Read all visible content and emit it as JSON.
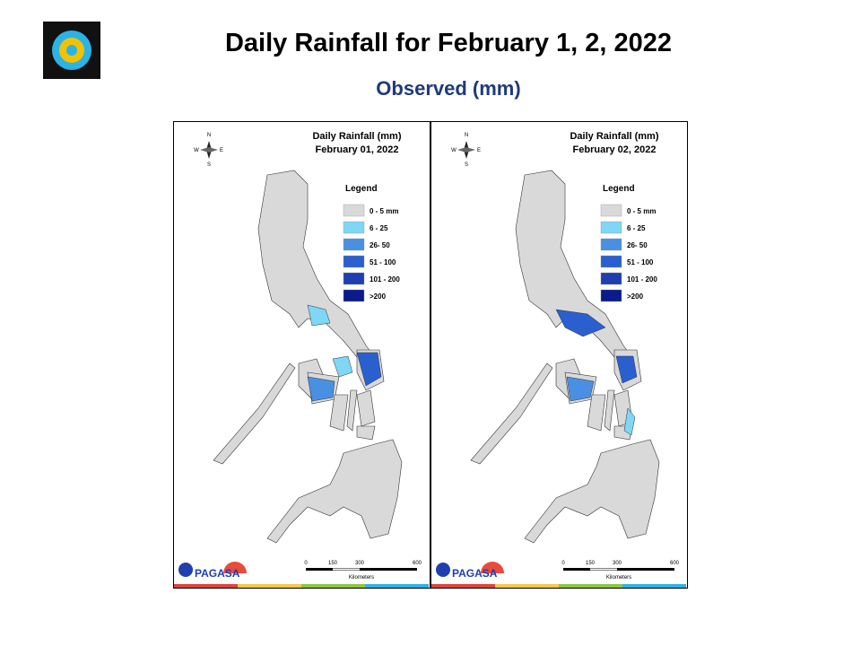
{
  "header": {
    "title": "Daily Rainfall for February 1, 2, 2022",
    "subtitle": "Observed (mm)"
  },
  "legend": {
    "title": "Legend",
    "items": [
      {
        "label": "0 - 5 mm",
        "color": "#d9d9d9"
      },
      {
        "label": "6 - 25",
        "color": "#7fd6f5"
      },
      {
        "label": "26- 50",
        "color": "#4a90e2"
      },
      {
        "label": "51 - 100",
        "color": "#2a5fd0"
      },
      {
        "label": "101 - 200",
        "color": "#1f3fb0"
      },
      {
        "label": ">200",
        "color": "#0b1a8c"
      }
    ]
  },
  "maps": [
    {
      "title": [
        "Daily Rainfall (mm)",
        "February 01, 2022"
      ]
    },
    {
      "title": [
        "Daily Rainfall (mm)",
        "February 02, 2022"
      ]
    }
  ],
  "scale_bar": {
    "ticks": [
      "0",
      "150",
      "300",
      "600"
    ],
    "unit": "Kilometers"
  },
  "compass": {
    "n": "N",
    "s": "S",
    "e": "E",
    "w": "W"
  },
  "logo_text": "PAGASA"
}
